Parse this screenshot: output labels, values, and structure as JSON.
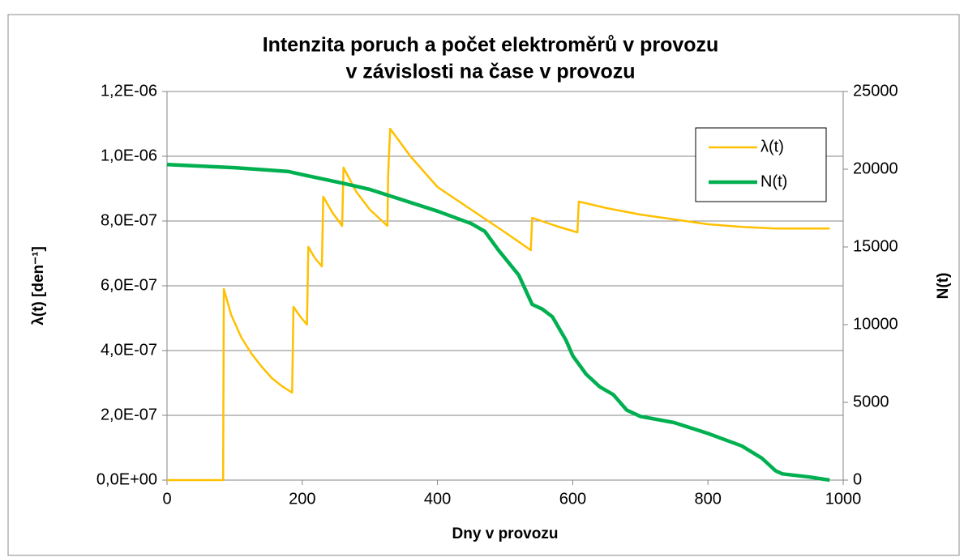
{
  "chart_data": {
    "type": "line",
    "title": [
      "Intenzita poruch a počet elektroměrů v provozu",
      "v závislosti na čase v provozu"
    ],
    "xlabel": "Dny v provozu",
    "ylabel": "λ(t) [den⁻¹]",
    "y2label": "N(t)",
    "xlim": [
      0,
      1000
    ],
    "xticks": [
      0,
      200,
      400,
      600,
      800,
      1000
    ],
    "ylim": [
      0,
      1.2e-06
    ],
    "yticks": [
      {
        "value": 0,
        "label": "0,0E+00"
      },
      {
        "value": 2e-07,
        "label": "2,0E-07"
      },
      {
        "value": 4e-07,
        "label": "4,0E-07"
      },
      {
        "value": 6e-07,
        "label": "6,0E-07"
      },
      {
        "value": 8e-07,
        "label": "8,0E-07"
      },
      {
        "value": 1e-06,
        "label": "1,0E-06"
      },
      {
        "value": 1.2e-06,
        "label": "1,2E-06"
      }
    ],
    "y2lim": [
      0,
      25000
    ],
    "y2ticks": [
      0,
      5000,
      10000,
      15000,
      20000,
      25000
    ],
    "grid": true,
    "legend": "upper right",
    "series": [
      {
        "name": "λ(t)",
        "color": "#FFC000",
        "width": 2.5,
        "x": [
          0,
          83,
          84,
          95,
          110,
          125,
          140,
          155,
          170,
          185,
          187,
          197,
          207,
          209,
          219,
          229,
          231,
          245,
          259,
          261,
          280,
          300,
          326,
          327,
          330,
          360,
          400,
          450,
          500,
          538,
          540,
          575,
          607,
          609,
          650,
          700,
          750,
          800,
          850,
          900,
          980
        ],
        "values": [
          0,
          0,
          5.9e-07,
          5.1e-07,
          4.4e-07,
          3.9e-07,
          3.5e-07,
          3.15e-07,
          2.9e-07,
          2.7e-07,
          5.35e-07,
          5.05e-07,
          4.8e-07,
          7.2e-07,
          6.85e-07,
          6.6e-07,
          8.75e-07,
          8.25e-07,
          7.85e-07,
          9.65e-07,
          8.9e-07,
          8.35e-07,
          7.85e-07,
          9.4e-07,
          1.085e-06,
          1e-06,
          9.05e-07,
          8.35e-07,
          7.65e-07,
          7.1e-07,
          8.1e-07,
          7.85e-07,
          7.65e-07,
          8.6e-07,
          8.4e-07,
          8.2e-07,
          8.05e-07,
          7.9e-07,
          7.82e-07,
          7.77e-07,
          7.77e-07
        ]
      },
      {
        "name": "N(t)",
        "color": "#00B050",
        "width": 4.5,
        "axis": "y2",
        "x": [
          0,
          100,
          180,
          200,
          260,
          300,
          350,
          400,
          450,
          470,
          490,
          520,
          540,
          555,
          570,
          590,
          600,
          620,
          640,
          660,
          680,
          700,
          750,
          800,
          850,
          880,
          900,
          910,
          950,
          980
        ],
        "values": [
          20300,
          20100,
          19850,
          19650,
          19100,
          18700,
          18000,
          17300,
          16500,
          16000,
          14800,
          13200,
          11300,
          11000,
          10500,
          9000,
          8000,
          6800,
          6000,
          5500,
          4500,
          4100,
          3700,
          3000,
          2200,
          1400,
          600,
          400,
          200,
          0
        ]
      }
    ]
  }
}
